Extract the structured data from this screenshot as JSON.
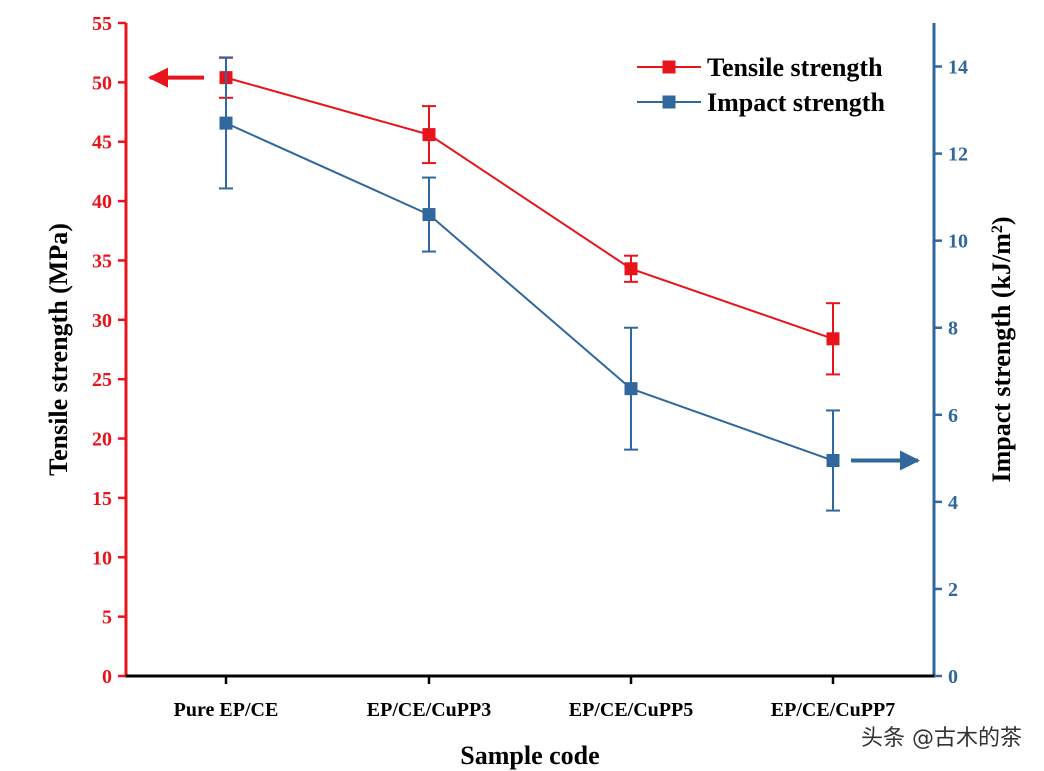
{
  "colors": {
    "tensile": "#e8141b",
    "impact": "#30679d",
    "axis_bottom": "#000000"
  },
  "chart_data": {
    "type": "line",
    "title": "",
    "xlabel": "Sample code",
    "ylabel_left": "Tensile strength (MPa)",
    "ylabel_right_main": "Impact strength (kJ/m",
    "ylabel_right_sup": "2",
    "ylabel_right_end": ")",
    "categories": [
      "Pure EP/CE",
      "EP/CE/CuPP3",
      "EP/CE/CuPP5",
      "EP/CE/CuPP7"
    ],
    "ylim_left": [
      0,
      55
    ],
    "yticks_left": [
      0,
      5,
      10,
      15,
      20,
      25,
      30,
      35,
      40,
      45,
      50,
      55
    ],
    "ylim_right": [
      0,
      15
    ],
    "yticks_right": [
      0,
      2,
      4,
      6,
      8,
      10,
      12,
      14
    ],
    "legend_position": "top-right",
    "series": [
      {
        "name": "Tensile strength",
        "axis": "left",
        "values": [
          50.4,
          45.6,
          34.3,
          28.4
        ],
        "errors": [
          1.7,
          2.4,
          1.1,
          3.0
        ],
        "color_key": "tensile",
        "marker": "square"
      },
      {
        "name": "Impact strength",
        "axis": "right",
        "values": [
          12.7,
          10.6,
          6.6,
          4.95
        ],
        "errors": [
          1.5,
          0.85,
          1.4,
          1.15
        ],
        "color_key": "impact",
        "marker": "square"
      }
    ],
    "annotations": [
      {
        "type": "arrow",
        "direction": "left",
        "points_to": "left-axis",
        "series": "Tensile strength"
      },
      {
        "type": "arrow",
        "direction": "right",
        "points_to": "right-axis",
        "series": "Impact strength"
      }
    ]
  },
  "watermark": "头条 @古木的茶"
}
